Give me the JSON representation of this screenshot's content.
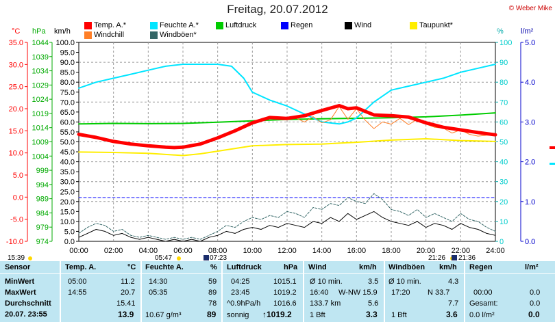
{
  "title": "Freitag, 20.07.2012",
  "copyright": "© Weber Mike",
  "axis_units": {
    "temp": "°C",
    "pressure": "hPa",
    "wind": "km/h",
    "humidity": "%",
    "rain": "l/m²"
  },
  "legend": [
    {
      "label": "Temp. A.*",
      "color": "#ff0000"
    },
    {
      "label": "Feuchte A.*",
      "color": "#00e5ff"
    },
    {
      "label": "Luftdruck",
      "color": "#00cc00"
    },
    {
      "label": "Regen",
      "color": "#0000ff"
    },
    {
      "label": "Wind",
      "color": "#000000"
    },
    {
      "label": "Taupunkt*",
      "color": "#ffee00"
    },
    {
      "label": "Windchill",
      "color": "#ff7f27"
    },
    {
      "label": "Windböen*",
      "color": "#336666"
    }
  ],
  "chart_data": {
    "type": "line",
    "title": "Freitag, 20.07.2012",
    "x_ticks": [
      "00:00",
      "02:00",
      "04:00",
      "06:00",
      "08:00",
      "10:00",
      "12:00",
      "14:00",
      "16:00",
      "18:00",
      "20:00",
      "22:00",
      "24:00"
    ],
    "xlim": [
      0,
      24
    ],
    "axes": {
      "temp_c": {
        "ticks": [
          "35.0",
          "30.0",
          "25.0",
          "20.0",
          "15.0",
          "10.0",
          "5.0",
          "0.0",
          "-5.0",
          "-10.0"
        ],
        "lim": [
          -10,
          35
        ],
        "color": "#ff0000"
      },
      "pressure_hpa": {
        "ticks": [
          "1044",
          "1039",
          "1034",
          "1029",
          "1024",
          "1019",
          "1014",
          "1009",
          "1004",
          "999",
          "994",
          "989",
          "984",
          "979",
          "974"
        ],
        "lim": [
          974,
          1044
        ],
        "color": "#00aa00"
      },
      "wind_kmh": {
        "ticks": [
          "100.0",
          "95.0",
          "90.0",
          "85.0",
          "80.0",
          "75.0",
          "70.0",
          "65.0",
          "60.0",
          "55.0",
          "50.0",
          "45.0",
          "40.0",
          "35.0",
          "30.0",
          "25.0",
          "20.0",
          "15.0",
          "10.0",
          "5.0",
          "0.0"
        ],
        "lim": [
          0,
          100
        ]
      },
      "humidity_pct": {
        "ticks": [
          "100",
          "90",
          "80",
          "70",
          "60",
          "50",
          "40",
          "30",
          "20",
          "10",
          "0"
        ],
        "lim": [
          0,
          100
        ],
        "color": "#00cccc"
      },
      "rain_lm2": {
        "ticks": [
          "5.0",
          "4.0",
          "3.0",
          "2.0",
          "1.0",
          "0.0"
        ],
        "lim": [
          0,
          5
        ],
        "color": "#0000cc"
      }
    },
    "series": [
      {
        "name": "Temp. A.*",
        "axis": "temp_c",
        "color": "#ff0000",
        "x": [
          0,
          1,
          2,
          3,
          4,
          5,
          5.5,
          6,
          7,
          8,
          9,
          10,
          11,
          12,
          13,
          14,
          15,
          15.5,
          16,
          17,
          18,
          19,
          20,
          21,
          22,
          23,
          24
        ],
        "y": [
          14.2,
          13.5,
          12.6,
          12.0,
          11.6,
          11.3,
          11.2,
          11.3,
          12.0,
          13.4,
          15.0,
          16.8,
          18.0,
          17.8,
          18.4,
          19.6,
          20.7,
          20.0,
          20.2,
          18.6,
          18.4,
          18.1,
          16.8,
          15.8,
          15.2,
          14.6,
          14.1
        ]
      },
      {
        "name": "Windchill",
        "axis": "temp_c",
        "color": "#ff7f27",
        "x": [
          12,
          12.5,
          13,
          13.5,
          14,
          14.5,
          15,
          15.5,
          16,
          16.5,
          17,
          17.5,
          18,
          18.5,
          19,
          19.5,
          20,
          20.5,
          21,
          21.5,
          22,
          22.5,
          23,
          23.5,
          24
        ],
        "y": [
          17.6,
          17.9,
          17.0,
          18.2,
          16.8,
          17.5,
          20.5,
          17.6,
          20.0,
          17.4,
          15.5,
          17.0,
          16.5,
          17.8,
          16.4,
          17.6,
          16.5,
          15.8,
          15.6,
          14.5,
          15.2,
          14.2,
          13.8,
          14.0,
          14.0
        ]
      },
      {
        "name": "Feuchte A.*",
        "axis": "humidity_pct",
        "color": "#00e5ff",
        "x": [
          0,
          1,
          2,
          3,
          4,
          5,
          6,
          7,
          8,
          8.8,
          9.5,
          10,
          11,
          12,
          13,
          14,
          15,
          15.5,
          16,
          17,
          18,
          19,
          20,
          21,
          22,
          23,
          24
        ],
        "y": [
          77,
          80,
          82,
          84,
          86,
          88,
          89,
          89,
          89,
          88,
          82,
          75,
          71,
          68,
          64,
          60,
          59,
          60,
          62,
          70,
          76,
          78,
          80,
          82,
          85,
          87,
          89
        ]
      },
      {
        "name": "Luftdruck",
        "axis": "pressure_hpa",
        "color": "#00cc00",
        "x": [
          0,
          2,
          4,
          6,
          8,
          10,
          12,
          14,
          16,
          18,
          20,
          22,
          24
        ],
        "y": [
          1015.3,
          1015.5,
          1015.4,
          1015.5,
          1015.9,
          1016.4,
          1016.9,
          1017.1,
          1017.3,
          1017.5,
          1017.8,
          1018.4,
          1019.2
        ]
      },
      {
        "name": "Taupunkt*",
        "axis": "temp_c",
        "color": "#ffee00",
        "x": [
          0,
          2,
          4,
          6,
          7,
          8,
          10,
          12,
          14,
          16,
          18,
          20,
          22,
          24
        ],
        "y": [
          10.2,
          10.1,
          9.9,
          9.4,
          9.8,
          10.4,
          11.6,
          11.9,
          12.0,
          12.4,
          12.9,
          13.2,
          12.8,
          12.6
        ]
      },
      {
        "name": "Wind",
        "axis": "wind_kmh",
        "color": "#000000",
        "x": [
          0,
          0.5,
          1,
          1.5,
          2,
          2.5,
          3,
          3.5,
          4,
          4.5,
          5,
          5.5,
          6,
          6.5,
          7,
          7.5,
          8,
          8.5,
          9,
          9.5,
          10,
          10.5,
          11,
          11.5,
          12,
          12.5,
          13,
          13.5,
          14,
          14.5,
          15,
          15.5,
          16,
          16.5,
          17,
          17.5,
          18,
          18.5,
          19,
          19.5,
          20,
          20.5,
          21,
          21.5,
          22,
          22.5,
          23,
          23.5,
          24
        ],
        "y": [
          2,
          4,
          6,
          5,
          3,
          4,
          2,
          1,
          2,
          1,
          0,
          1,
          0,
          1,
          0,
          2,
          3,
          5,
          4,
          6,
          7,
          6,
          8,
          7,
          9,
          8,
          7,
          10,
          9,
          12,
          10,
          14,
          11,
          13,
          15,
          12,
          10,
          9,
          8,
          10,
          7,
          9,
          8,
          6,
          9,
          7,
          6,
          4,
          3
        ]
      },
      {
        "name": "Windböen*",
        "axis": "wind_kmh",
        "color": "#336666",
        "x": [
          0,
          0.5,
          1,
          1.5,
          2,
          2.5,
          3,
          3.5,
          4,
          4.5,
          5,
          5.5,
          6,
          6.5,
          7,
          7.5,
          8,
          8.5,
          9,
          9.5,
          10,
          10.5,
          11,
          11.5,
          12,
          12.5,
          13,
          13.5,
          14,
          14.5,
          15,
          15.5,
          16,
          16.5,
          17,
          17.5,
          18,
          18.5,
          19,
          19.5,
          20,
          20.5,
          21,
          21.5,
          22,
          22.5,
          23,
          23.5,
          24
        ],
        "y": [
          4,
          7,
          9,
          8,
          5,
          6,
          3,
          2,
          3,
          2,
          1,
          2,
          1,
          2,
          1,
          3,
          5,
          8,
          7,
          10,
          12,
          11,
          13,
          12,
          15,
          14,
          12,
          17,
          16,
          19,
          18,
          22,
          20,
          19,
          24,
          21,
          16,
          15,
          13,
          16,
          12,
          14,
          12,
          10,
          14,
          11,
          10,
          7,
          5
        ]
      },
      {
        "name": "Regen",
        "axis": "rain_lm2",
        "color": "#0000ff",
        "x": [
          0,
          24
        ],
        "y": [
          1.1,
          1.1
        ]
      }
    ],
    "grid": true
  },
  "sun_moon": {
    "left_time": "15:39",
    "sunrise": "05:47",
    "moonrise": "07:23",
    "sunset": "21:26",
    "moonset": "21:36"
  },
  "stats": {
    "row_labels": [
      "Sensor",
      "MinWert",
      "MaxWert",
      "Durchschnitt",
      "20.07. 23:55"
    ],
    "temp": {
      "head": "Temp. A.",
      "unit": "°C",
      "min_time": "05:00",
      "min": "11.2",
      "max_time": "14:55",
      "max": "20.7",
      "avg": "15.41",
      "cur": "13.9"
    },
    "humidity": {
      "head": "Feuchte A.",
      "unit": "%",
      "min_time": "14:30",
      "min": "59",
      "max_time": "05:35",
      "max": "89",
      "avg": "78",
      "cur_abs": "10.67 g/m³",
      "cur": "89"
    },
    "pressure": {
      "head": "Luftdruck",
      "unit": "hPa",
      "min_time": "04:25",
      "min": "1015.1",
      "max_time": "23:45",
      "max": "1019.2",
      "trend": "^0.9hPa/h",
      "avg": "1016.6",
      "weather": "sonnig",
      "cur": "↑1019.2"
    },
    "wind": {
      "head": "Wind",
      "unit": "km/h",
      "l1a": "Ø 10 min.",
      "l1b": "3.5",
      "l2a": "16:40",
      "l2b": "W-NW 15.9",
      "l3a": "133.7 km",
      "l3b": "5.6",
      "l4a": "1 Bft",
      "l4b": "3.3"
    },
    "gusts": {
      "head": "Windböen",
      "unit": "km/h",
      "l1a": "Ø 10 min.",
      "l1b": "4.3",
      "l2a": "17:20",
      "l2b": "N 33.7",
      "l3b": "7.7",
      "l4a": "1 Bft",
      "l4b": "3.6"
    },
    "rain": {
      "head": "Regen",
      "unit": "l/m²",
      "l2a": "00:00",
      "l2b": "0.0",
      "l3a": "Gesamt:",
      "l3b": "0.0",
      "l4a": "0.0 l/m²",
      "l4b": "0.0"
    }
  }
}
